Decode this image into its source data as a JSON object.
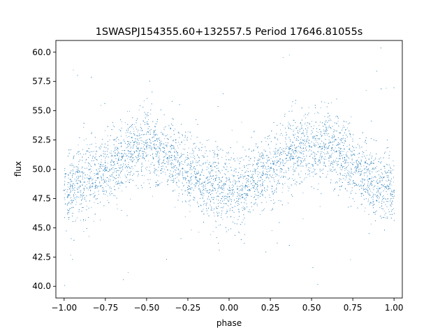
{
  "chart_data": {
    "type": "scatter",
    "title": "1SWASPJ154355.60+132557.5 Period 17646.81055s",
    "xlabel": "phase",
    "ylabel": "flux",
    "xlim": [
      -1.05,
      1.05
    ],
    "ylim": [
      39.0,
      61.0
    ],
    "x_ticks": [
      -1.0,
      -0.75,
      -0.5,
      -0.25,
      0.0,
      0.25,
      0.5,
      0.75,
      1.0
    ],
    "x_tick_labels": [
      "−1.00",
      "−0.75",
      "−0.50",
      "−0.25",
      "0.00",
      "0.25",
      "0.50",
      "0.75",
      "1.00"
    ],
    "y_ticks": [
      40.0,
      42.5,
      45.0,
      47.5,
      50.0,
      52.5,
      55.0,
      57.5,
      60.0
    ],
    "y_tick_labels": [
      "40.0",
      "42.5",
      "45.0",
      "47.5",
      "50.0",
      "52.5",
      "55.0",
      "57.5",
      "60.0"
    ],
    "grid": false,
    "marker_color": "#1f77b4",
    "series": [
      {
        "points": [
          [
            -1.0,
            48.2
          ],
          [
            -0.95,
            48.6
          ],
          [
            -0.9,
            48.9
          ],
          [
            -0.85,
            49.2
          ],
          [
            -0.8,
            49.6
          ],
          [
            -0.75,
            50.1
          ],
          [
            -0.7,
            50.6
          ],
          [
            -0.65,
            51.1
          ],
          [
            -0.6,
            51.5
          ],
          [
            -0.55,
            51.8
          ],
          [
            -0.5,
            51.9
          ],
          [
            -0.45,
            51.8
          ],
          [
            -0.4,
            51.5
          ],
          [
            -0.35,
            51.0
          ],
          [
            -0.3,
            50.4
          ],
          [
            -0.25,
            49.8
          ],
          [
            -0.2,
            49.3
          ],
          [
            -0.15,
            48.9
          ],
          [
            -0.1,
            48.6
          ],
          [
            -0.05,
            48.4
          ],
          [
            0.0,
            48.2
          ],
          [
            0.05,
            48.3
          ],
          [
            0.1,
            48.6
          ],
          [
            0.15,
            49.0
          ],
          [
            0.2,
            49.5
          ],
          [
            0.25,
            50.1
          ],
          [
            0.3,
            50.7
          ],
          [
            0.35,
            51.2
          ],
          [
            0.4,
            51.6
          ],
          [
            0.45,
            51.8
          ],
          [
            0.5,
            51.9
          ],
          [
            0.55,
            51.9
          ],
          [
            0.6,
            51.8
          ],
          [
            0.65,
            51.5
          ],
          [
            0.7,
            51.0
          ],
          [
            0.75,
            50.4
          ],
          [
            0.8,
            49.8
          ],
          [
            0.85,
            49.2
          ],
          [
            0.9,
            48.8
          ],
          [
            0.95,
            48.5
          ],
          [
            1.0,
            48.2
          ]
        ]
      }
    ]
  }
}
